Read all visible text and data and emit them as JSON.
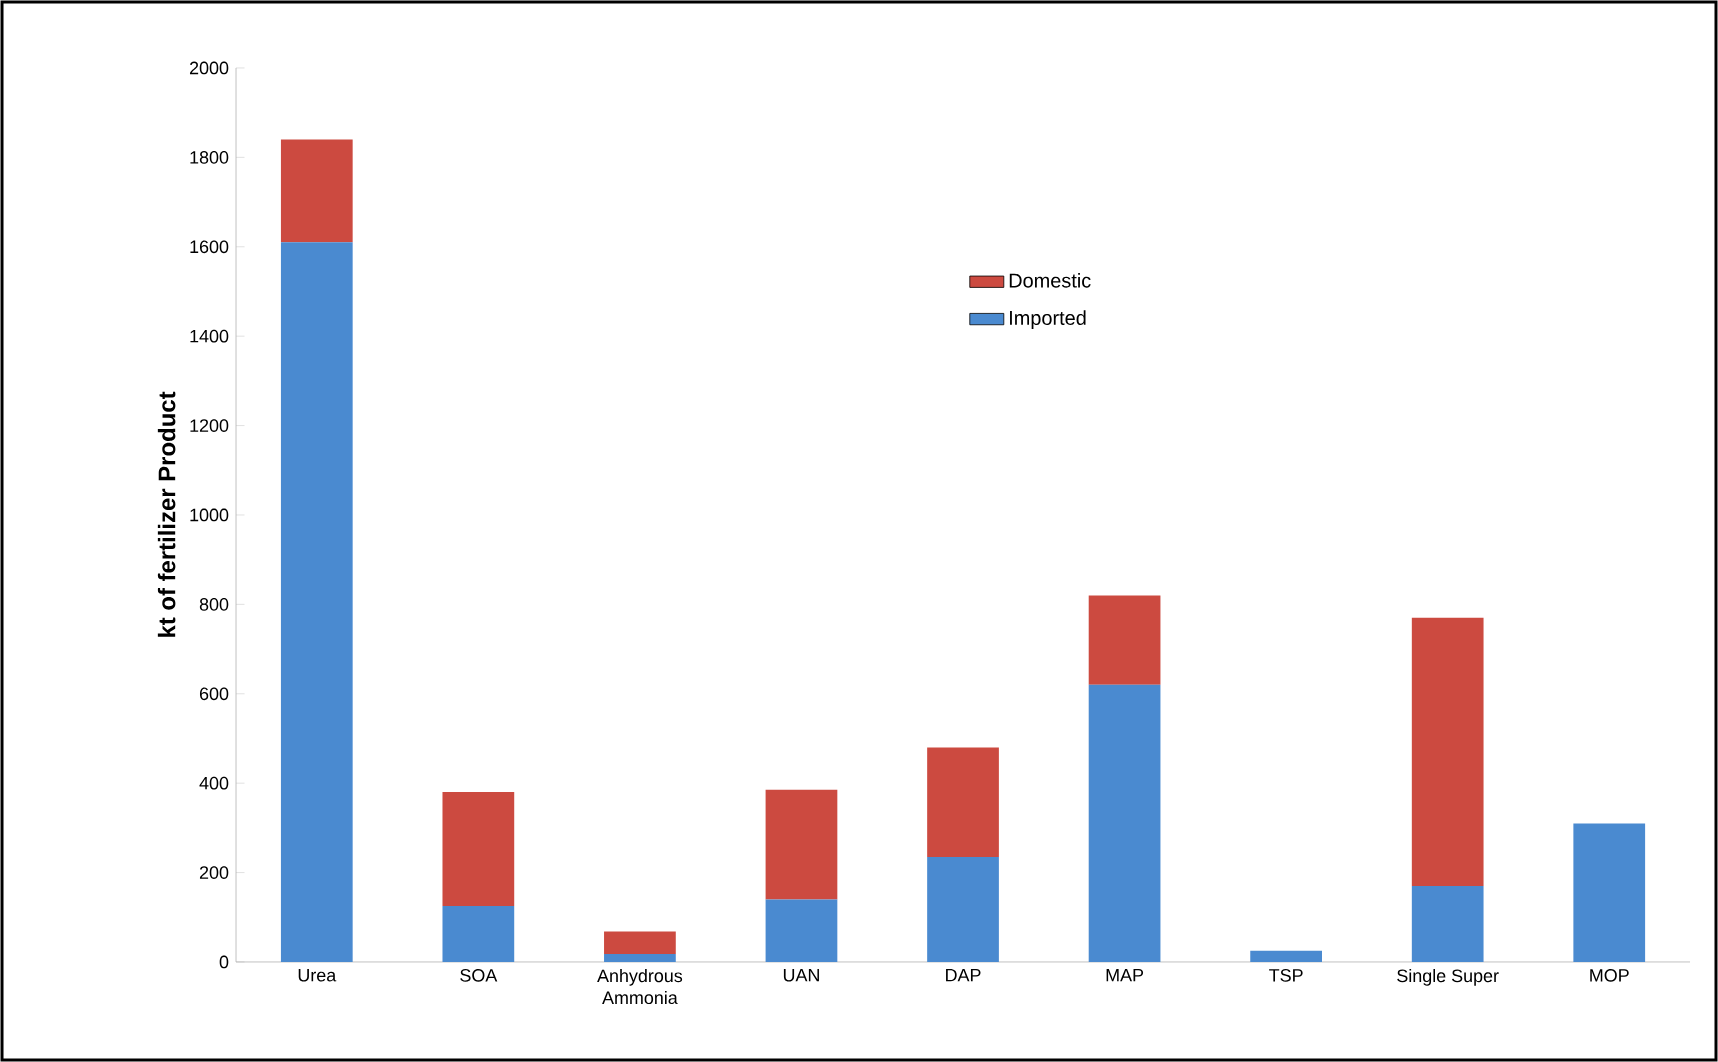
{
  "chart_data": {
    "type": "bar",
    "stacked": true,
    "ylabel": "kt of fertilizer Product",
    "categories": [
      "Urea",
      "SOA",
      "Anhydrous Ammonia",
      "UAN",
      "DAP",
      "MAP",
      "TSP",
      "Single Super",
      "MOP"
    ],
    "series": [
      {
        "name": "Imported",
        "color": "#4a8ad0",
        "values": [
          1610,
          125,
          18,
          140,
          235,
          620,
          25,
          170,
          310
        ]
      },
      {
        "name": "Domestic",
        "color": "#cc4a40",
        "values": [
          230,
          255,
          50,
          245,
          245,
          200,
          0,
          600,
          0
        ]
      }
    ],
    "ylim": [
      0,
      2000
    ],
    "yticks": [
      0,
      200,
      400,
      600,
      800,
      1000,
      1200,
      1400,
      1600,
      1800,
      2000
    ],
    "grid": false,
    "legend": "top"
  }
}
